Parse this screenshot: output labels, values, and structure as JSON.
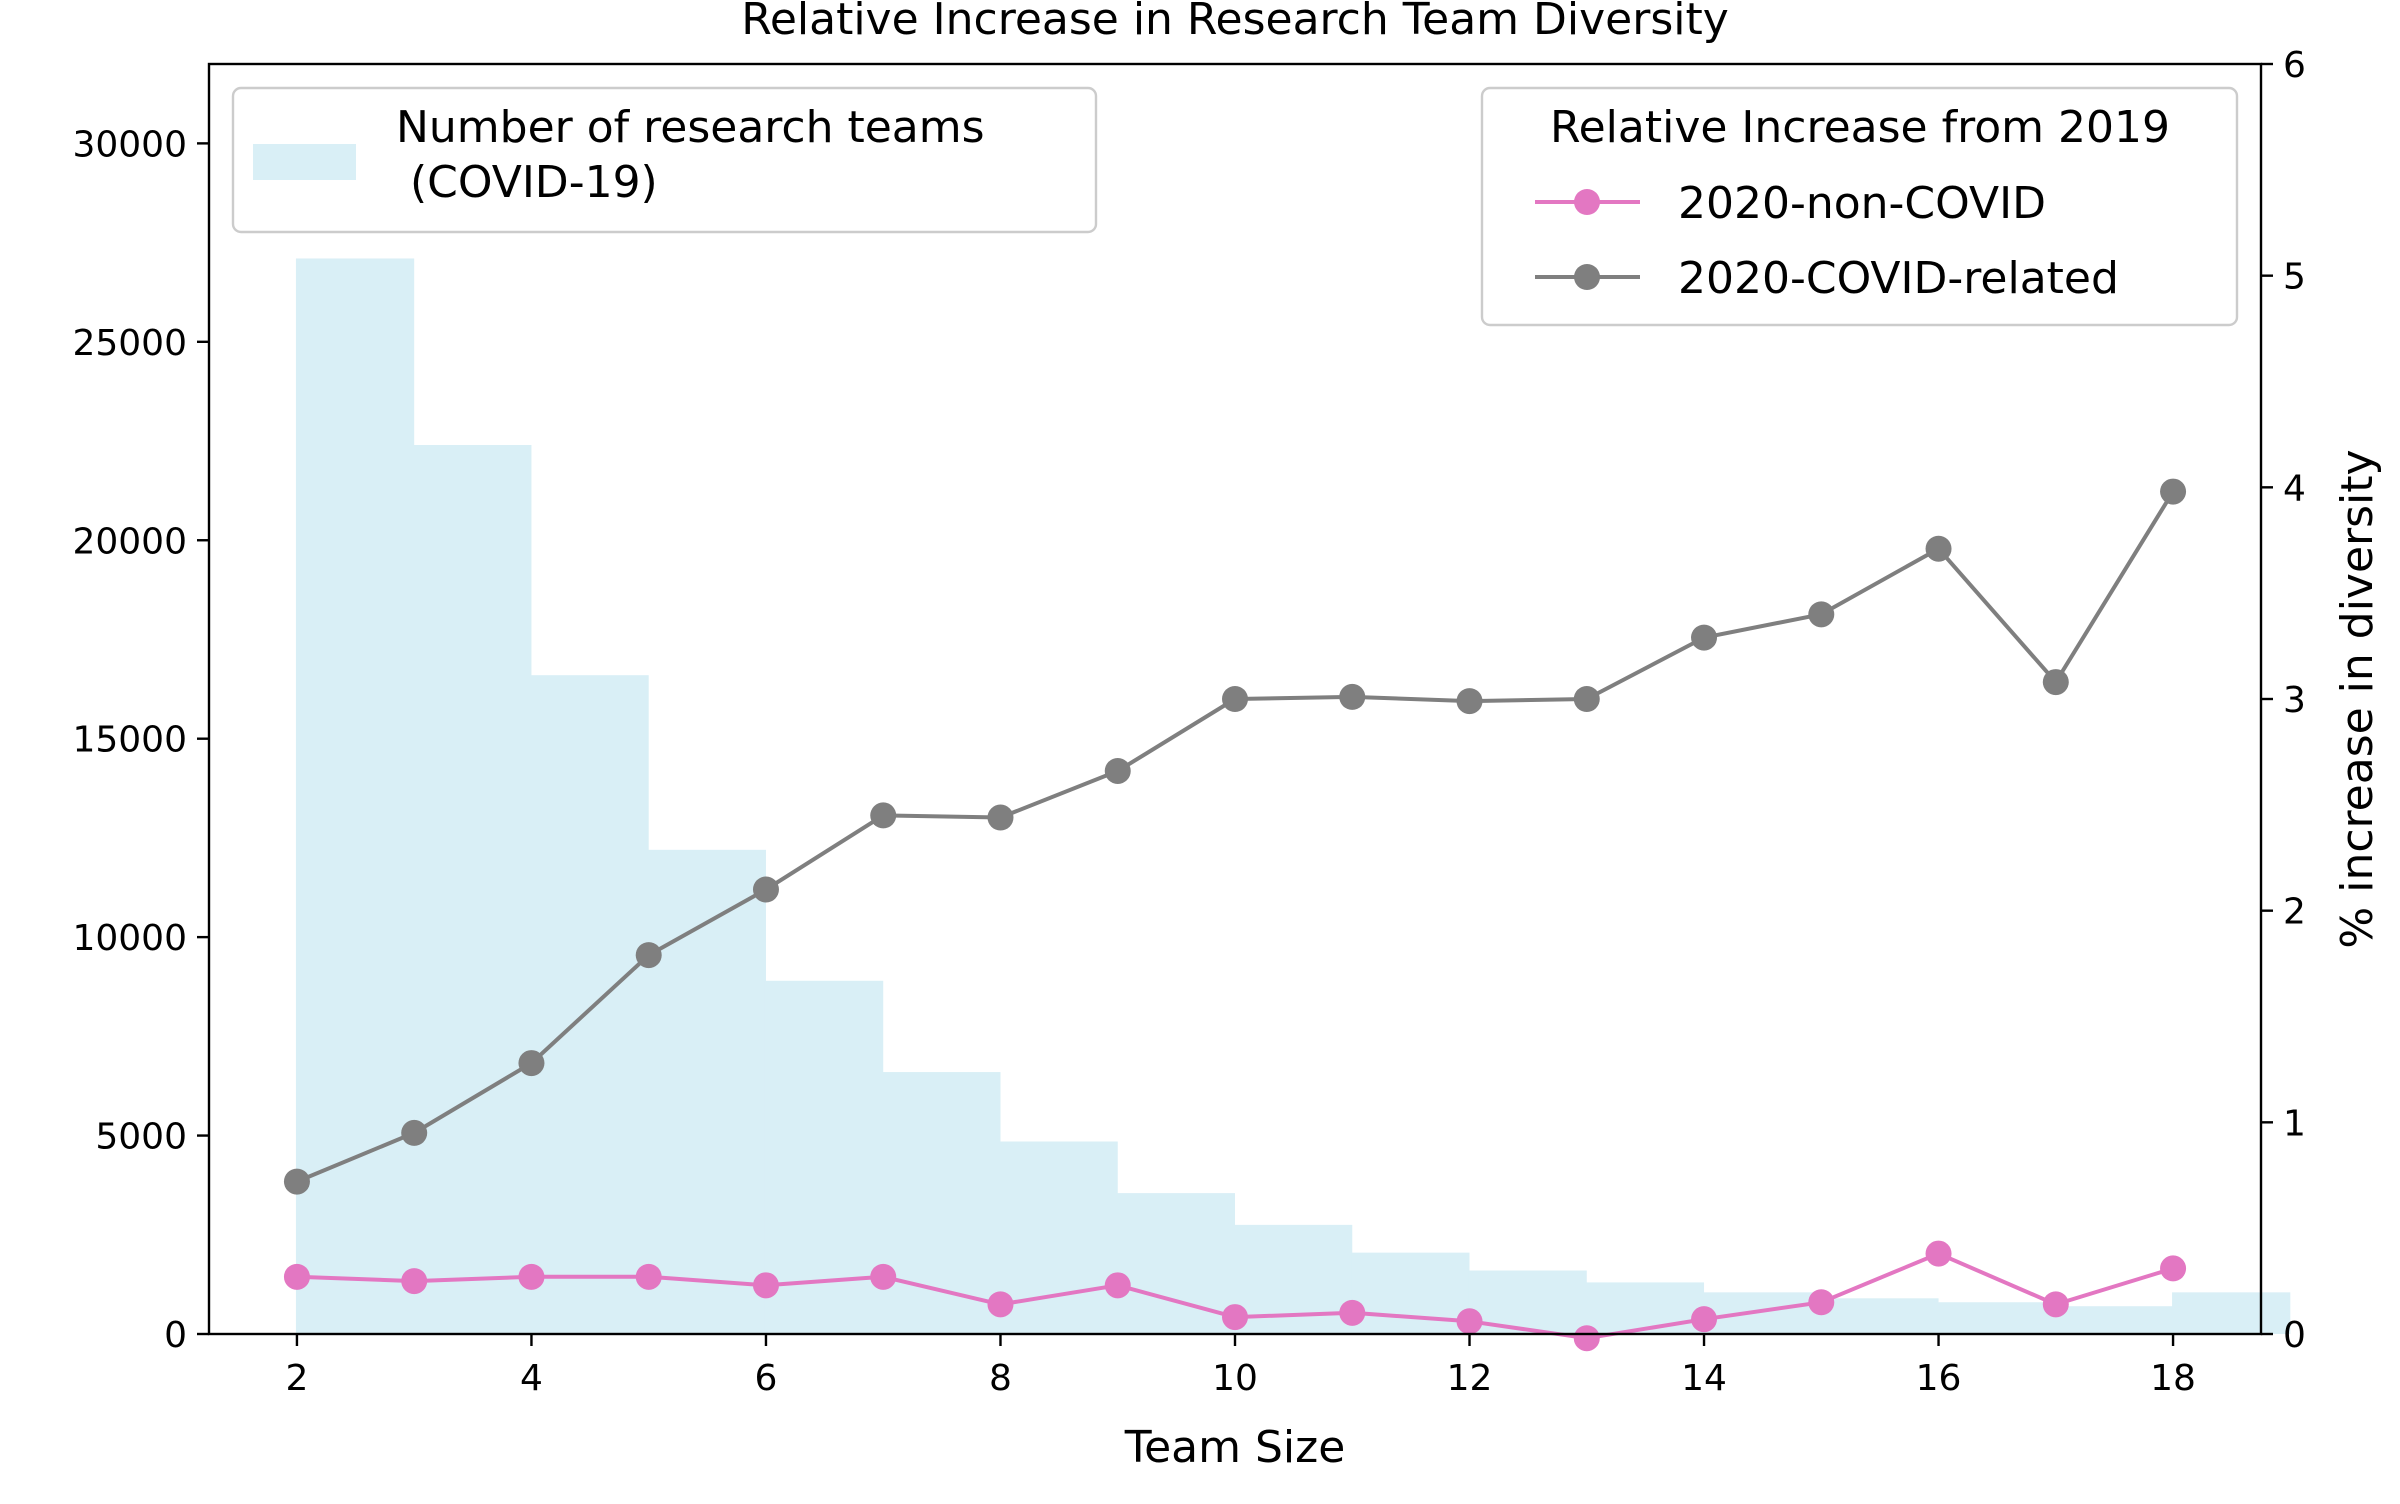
{
  "chart_data": {
    "type": "bar+line",
    "title": "Relative Increase in Research Team Diversity",
    "xlabel": "Team Size",
    "ylabel_left": "",
    "ylabel_right": "% increase in diversity",
    "x_ticks": [
      2,
      4,
      6,
      8,
      10,
      12,
      14,
      16,
      18
    ],
    "y_left_ticks": [
      0,
      5000,
      10000,
      15000,
      20000,
      25000,
      30000
    ],
    "y_right_ticks": [
      0,
      1,
      2,
      3,
      4,
      5,
      6
    ],
    "xlim": [
      1.25,
      18.75
    ],
    "ylim_left": [
      0,
      32000
    ],
    "ylim_right": [
      0,
      6
    ],
    "grid": false,
    "bars": {
      "name": "Number of research teams\n (COVID-19)",
      "color": "#d9eff6",
      "x": [
        2,
        3,
        4,
        5,
        6,
        7,
        8,
        9,
        10,
        11,
        12,
        13,
        14,
        15,
        16,
        17,
        18
      ],
      "values": [
        27100,
        22400,
        16600,
        12200,
        8900,
        6600,
        4850,
        3550,
        2750,
        2050,
        1600,
        1300,
        1050,
        900,
        800,
        700,
        1050
      ]
    },
    "series": [
      {
        "name": "2020-non-COVID",
        "color": "#e377c2",
        "x": [
          2,
          3,
          4,
          5,
          6,
          7,
          8,
          9,
          10,
          11,
          12,
          13,
          14,
          15,
          16,
          17,
          18
        ],
        "values": [
          0.27,
          0.25,
          0.27,
          0.27,
          0.23,
          0.27,
          0.14,
          0.23,
          0.08,
          0.1,
          0.06,
          -0.02,
          0.07,
          0.15,
          0.38,
          0.14,
          0.31
        ]
      },
      {
        "name": "2020-COVID-related",
        "color": "#7f7f7f",
        "x": [
          2,
          3,
          4,
          5,
          6,
          7,
          8,
          9,
          10,
          11,
          12,
          13,
          14,
          15,
          16,
          17,
          18
        ],
        "values": [
          0.72,
          0.95,
          1.28,
          1.79,
          2.1,
          2.45,
          2.44,
          2.66,
          3.0,
          3.01,
          2.99,
          3.0,
          3.29,
          3.4,
          3.71,
          3.08,
          3.98
        ]
      }
    ],
    "legends": {
      "bar_legend_placement": "upper-left",
      "line_legend_placement": "upper-right",
      "line_legend_title": "Relative Increase from 2019"
    }
  }
}
